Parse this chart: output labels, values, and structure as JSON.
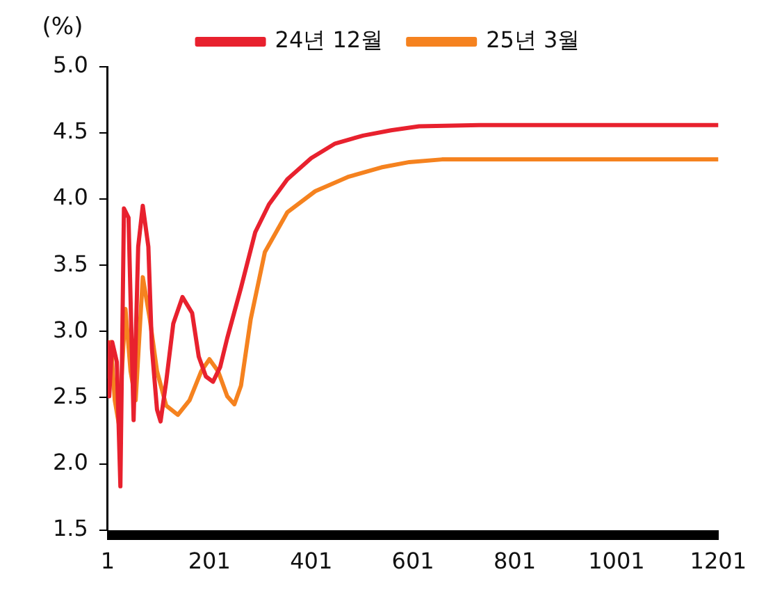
{
  "chart_data": {
    "type": "line",
    "ylabel": "(%)",
    "legend": "top",
    "marker": "none",
    "line_style": "solid",
    "grid": false,
    "xlim": [
      1,
      1201
    ],
    "xticks": [
      1,
      201,
      401,
      601,
      801,
      1001,
      1201
    ],
    "ylim": [
      1.5,
      5.0
    ],
    "yticks": [
      {
        "value": 1.5,
        "label": "1.5"
      },
      {
        "value": 2.0,
        "label": "2.0"
      },
      {
        "value": 2.5,
        "label": "2.5"
      },
      {
        "value": 3.0,
        "label": "3.0"
      },
      {
        "value": 3.5,
        "label": "3.5"
      },
      {
        "value": 4.0,
        "label": "4.0"
      },
      {
        "value": 4.5,
        "label": "4.5"
      },
      {
        "value": 5.0,
        "label": "5.0"
      }
    ],
    "series": [
      {
        "name": "24년 12월",
        "color": "#e8212e",
        "x": [
          1,
          4,
          10,
          19,
          26,
          33,
          42,
          52,
          61,
          70,
          81,
          88,
          98,
          105,
          116,
          130,
          148,
          167,
          180,
          194,
          208,
          222,
          236,
          263,
          291,
          318,
          354,
          401,
          448,
          503,
          558,
          613,
          732,
          1201
        ],
        "values": [
          2.92,
          2.51,
          2.92,
          2.77,
          1.83,
          3.93,
          3.86,
          2.33,
          3.64,
          3.95,
          3.64,
          2.87,
          2.41,
          2.32,
          2.62,
          3.06,
          3.26,
          3.14,
          2.81,
          2.66,
          2.62,
          2.73,
          2.95,
          3.33,
          3.75,
          3.96,
          4.15,
          4.31,
          4.42,
          4.48,
          4.52,
          4.55,
          4.56,
          4.56
        ]
      },
      {
        "name": "25년 3월",
        "color": "#f5821f",
        "x": [
          1,
          7,
          15,
          23,
          36,
          46,
          56,
          70,
          84,
          98,
          116,
          139,
          162,
          185,
          201,
          218,
          236,
          250,
          263,
          282,
          310,
          354,
          409,
          475,
          539,
          594,
          658,
          1201
        ],
        "values": [
          2.66,
          2.92,
          2.48,
          2.3,
          3.17,
          2.7,
          2.48,
          3.41,
          3.09,
          2.7,
          2.44,
          2.37,
          2.48,
          2.7,
          2.79,
          2.7,
          2.51,
          2.45,
          2.59,
          3.09,
          3.6,
          3.9,
          4.06,
          4.17,
          4.24,
          4.28,
          4.3,
          4.3
        ]
      }
    ]
  }
}
